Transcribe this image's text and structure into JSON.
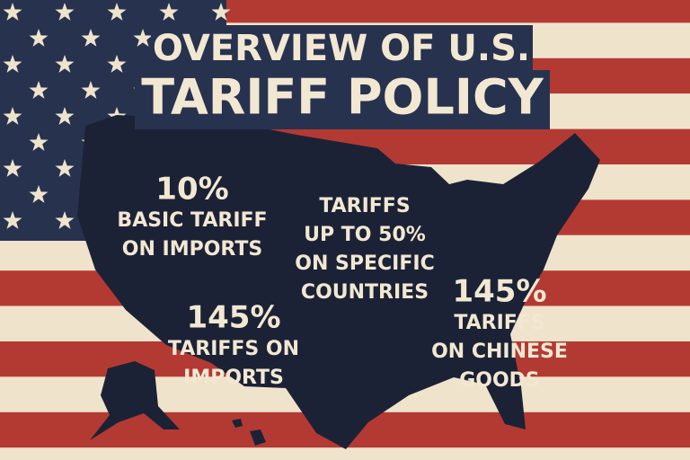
{
  "title": {
    "line1": "OVERVIEW OF U.S.",
    "line2": "TARIFF POLICY"
  },
  "items": [
    {
      "figure": "10%",
      "lines": [
        "BASIC TARIFF",
        "ON IMPORTS"
      ]
    },
    {
      "lines": [
        "TARIFFS",
        "UP TO 50%",
        "ON SPECIFIC",
        "COUNTRIES"
      ]
    },
    {
      "figure": "145%",
      "lines": [
        "TARIFFS ON",
        "IMPORTS"
      ]
    },
    {
      "figure": "145%",
      "lines": [
        "TARIFFS",
        "ON CHINESE",
        "GOODS"
      ]
    }
  ]
}
